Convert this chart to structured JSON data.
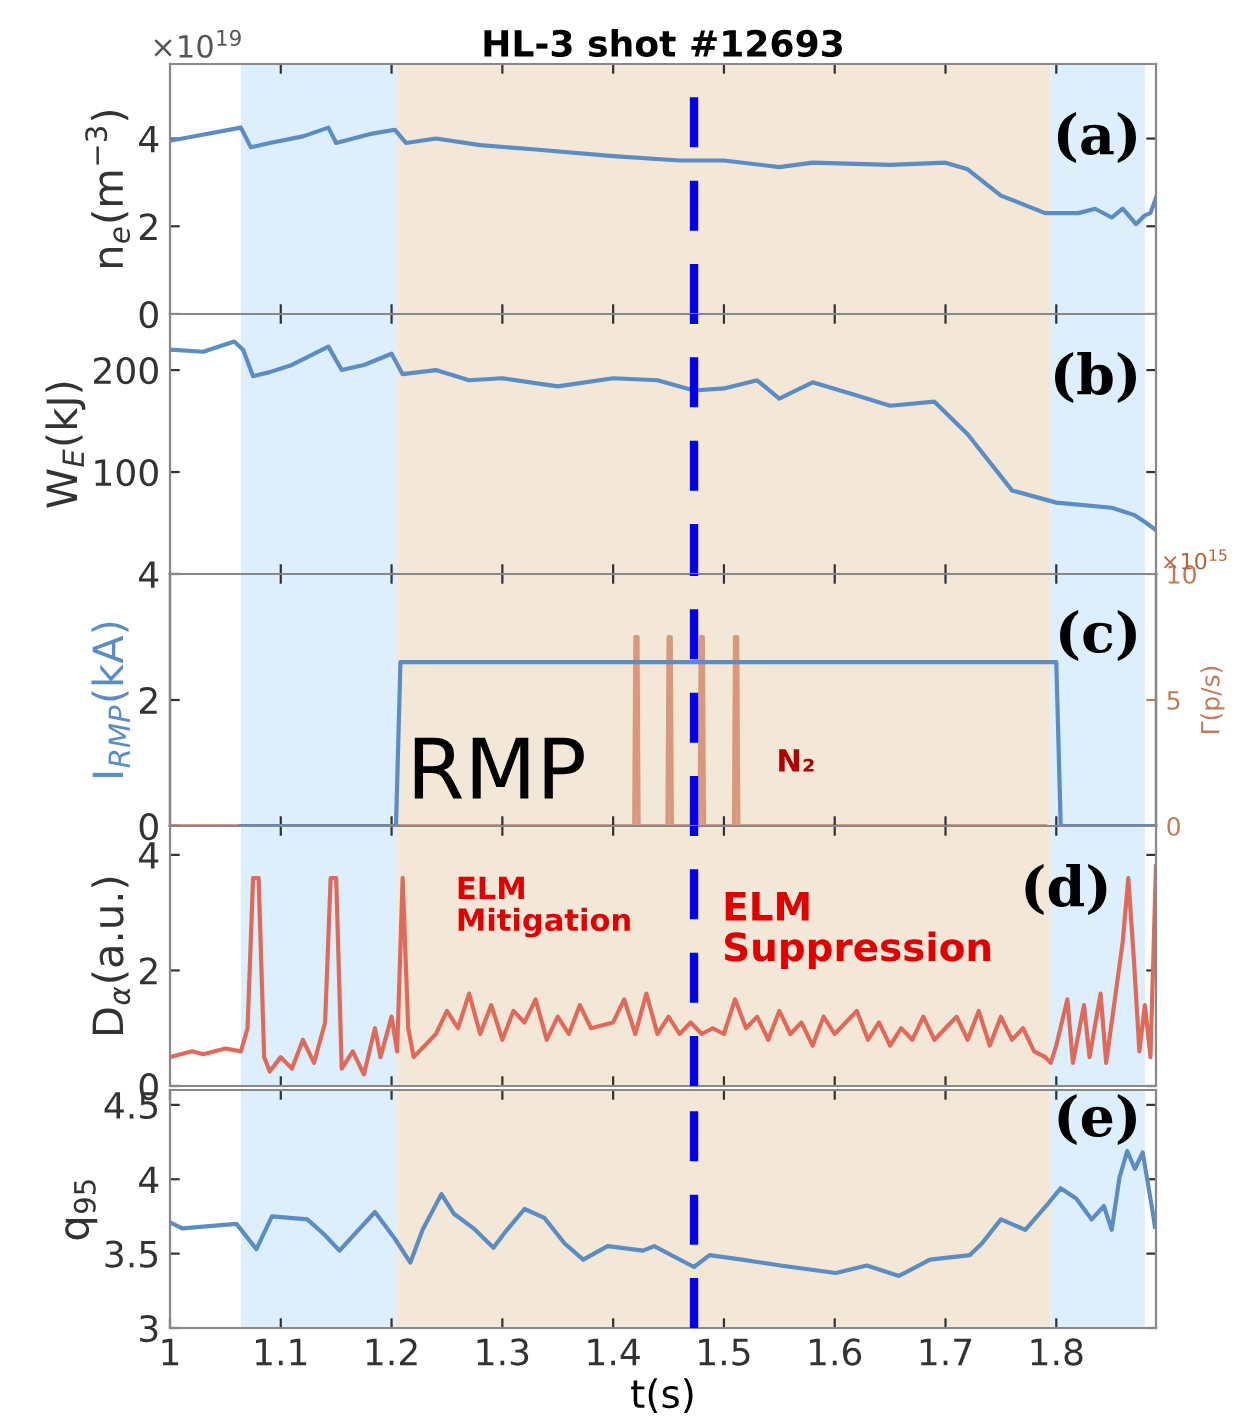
{
  "chart_data": [
    {
      "type": "line",
      "title": "HL-3 shot #12693",
      "ylabel": "n$_{e}$(m$^{−3}$)",
      "annotations": [
        "×10$^{19}$",
        "(a)"
      ],
      "tick_labels": "y",
      "xlim": [
        1,
        1.89
      ],
      "ylim": [
        0,
        5.7
      ],
      "yticks": [
        0,
        2,
        4
      ],
      "bands": [
        {
          "axis": "x",
          "from": 1.064,
          "to": 1.205,
          "color": "#ddeefc"
        },
        {
          "axis": "x",
          "from": 1.205,
          "to": 1.795,
          "color": "#f3e7d8"
        },
        {
          "axis": "x",
          "from": 1.795,
          "to": 1.88,
          "color": "#ddeefc"
        }
      ],
      "ref_lines": [
        {
          "axis": "x",
          "value": 1.473,
          "color": "#0000ee",
          "line_style": "dashed"
        }
      ],
      "series": [
        {
          "color": "#5b8cc4",
          "x": [
            1.0,
            1.064,
            1.073,
            1.09,
            1.12,
            1.143,
            1.15,
            1.18,
            1.203,
            1.213,
            1.24,
            1.28,
            1.33,
            1.4,
            1.46,
            1.5,
            1.55,
            1.58,
            1.65,
            1.7,
            1.72,
            1.75,
            1.79,
            1.82,
            1.835,
            1.85,
            1.86,
            1.872,
            1.88,
            1.885,
            1.89
          ],
          "values": [
            3.95,
            4.25,
            3.8,
            3.9,
            4.05,
            4.25,
            3.9,
            4.1,
            4.2,
            3.9,
            4.0,
            3.85,
            3.75,
            3.6,
            3.5,
            3.5,
            3.35,
            3.45,
            3.4,
            3.45,
            3.3,
            2.7,
            2.3,
            2.3,
            2.4,
            2.2,
            2.4,
            2.05,
            2.25,
            2.3,
            2.65
          ]
        }
      ]
    },
    {
      "type": "line",
      "ylabel": "W$_{E}$(kJ)",
      "annotations": [
        "(b)"
      ],
      "tick_labels": "y",
      "xlim": [
        1,
        1.89
      ],
      "ylim": [
        0,
        255
      ],
      "yticks": [
        100,
        200
      ],
      "bands": [
        {
          "axis": "x",
          "from": 1.064,
          "to": 1.205,
          "color": "#ddeefc"
        },
        {
          "axis": "x",
          "from": 1.205,
          "to": 1.795,
          "color": "#f3e7d8"
        },
        {
          "axis": "x",
          "from": 1.795,
          "to": 1.88,
          "color": "#ddeefc"
        }
      ],
      "ref_lines": [
        {
          "axis": "x",
          "value": 1.473,
          "color": "#0000ee",
          "line_style": "dashed"
        }
      ],
      "series": [
        {
          "color": "#5b8cc4",
          "x": [
            1.0,
            1.03,
            1.058,
            1.066,
            1.075,
            1.09,
            1.11,
            1.143,
            1.155,
            1.175,
            1.2,
            1.21,
            1.24,
            1.27,
            1.3,
            1.35,
            1.4,
            1.44,
            1.473,
            1.5,
            1.53,
            1.55,
            1.58,
            1.62,
            1.65,
            1.69,
            1.72,
            1.76,
            1.8,
            1.85,
            1.87,
            1.88,
            1.89
          ],
          "values": [
            220,
            218,
            228,
            220,
            194,
            198,
            205,
            223,
            200,
            205,
            216,
            196,
            200,
            190,
            192,
            184,
            192,
            190,
            180,
            182,
            190,
            172,
            188,
            175,
            165,
            169,
            137,
            82,
            70,
            65,
            58,
            51,
            43
          ]
        }
      ]
    },
    {
      "type": "line",
      "ylabel": "I$_{RMP}$(kA)",
      "y2label": "Γ(p/s)",
      "annotations": [
        "×10$^{15}$",
        "(c)",
        "RMP",
        "N₂"
      ],
      "tick_labels": "y",
      "xlim": [
        1,
        1.89
      ],
      "ylim": [
        0,
        4
      ],
      "yticks": [
        0,
        2,
        4
      ],
      "y2lim": [
        0,
        10
      ],
      "y2ticks": [
        0,
        5,
        10
      ],
      "bands": [
        {
          "axis": "x",
          "from": 1.064,
          "to": 1.205,
          "color": "#ddeefc"
        },
        {
          "axis": "x",
          "from": 1.205,
          "to": 1.795,
          "color": "#f3e7d8"
        },
        {
          "axis": "x",
          "from": 1.795,
          "to": 1.88,
          "color": "#ddeefc"
        }
      ],
      "ref_lines": [
        {
          "axis": "x",
          "value": 1.473,
          "color": "#0000ee",
          "line_style": "dashed"
        }
      ],
      "series": [
        {
          "color": "#d9987a",
          "axis": "y2",
          "x": [
            1.0,
            1.419,
            1.42,
            1.422,
            1.423,
            1.449,
            1.45,
            1.452,
            1.453,
            1.478,
            1.479,
            1.481,
            1.482,
            1.509,
            1.51,
            1.512,
            1.513,
            1.79
          ],
          "values": [
            0,
            0,
            7.5,
            7.5,
            0,
            0,
            7.5,
            7.5,
            0,
            0,
            7.5,
            7.5,
            0,
            0,
            7.5,
            7.5,
            0,
            0
          ]
        },
        {
          "color": "#5b8cc4",
          "x": [
            1.064,
            1.204,
            1.208,
            1.8,
            1.804,
            1.89
          ],
          "values": [
            0,
            0,
            2.6,
            2.6,
            0,
            0
          ]
        }
      ]
    },
    {
      "type": "line",
      "ylabel": "D$_{α}$(a.u.)",
      "annotations": [
        "(d)",
        "ELM\nMitigation",
        "ELM\nSuppression"
      ],
      "tick_labels": "y",
      "xlim": [
        1,
        1.89
      ],
      "ylim": [
        0,
        4.5
      ],
      "yticks": [
        0,
        2,
        4
      ],
      "bands": [
        {
          "axis": "x",
          "from": 1.064,
          "to": 1.205,
          "color": "#ddeefc"
        },
        {
          "axis": "x",
          "from": 1.205,
          "to": 1.795,
          "color": "#f3e7d8"
        },
        {
          "axis": "x",
          "from": 1.795,
          "to": 1.88,
          "color": "#ddeefc"
        }
      ],
      "ref_lines": [
        {
          "axis": "x",
          "value": 1.473,
          "color": "#0000ee",
          "line_style": "dashed"
        }
      ],
      "series": [
        {
          "color": "#e06a5a",
          "x": [
            1.0,
            1.02,
            1.03,
            1.05,
            1.064,
            1.07,
            1.075,
            1.08,
            1.085,
            1.09,
            1.1,
            1.11,
            1.12,
            1.13,
            1.14,
            1.145,
            1.15,
            1.155,
            1.165,
            1.175,
            1.185,
            1.19,
            1.2,
            1.205,
            1.21,
            1.215,
            1.22,
            1.24,
            1.25,
            1.26,
            1.27,
            1.28,
            1.29,
            1.3,
            1.31,
            1.32,
            1.33,
            1.34,
            1.35,
            1.36,
            1.37,
            1.38,
            1.4,
            1.41,
            1.42,
            1.43,
            1.44,
            1.45,
            1.46,
            1.47,
            1.48,
            1.49,
            1.5,
            1.51,
            1.52,
            1.53,
            1.54,
            1.55,
            1.56,
            1.57,
            1.58,
            1.59,
            1.6,
            1.62,
            1.63,
            1.64,
            1.65,
            1.66,
            1.67,
            1.68,
            1.69,
            1.7,
            1.71,
            1.72,
            1.73,
            1.74,
            1.75,
            1.76,
            1.77,
            1.78,
            1.79,
            1.795,
            1.8,
            1.81,
            1.815,
            1.825,
            1.83,
            1.84,
            1.845,
            1.855,
            1.86,
            1.865,
            1.87,
            1.875,
            1.88,
            1.885,
            1.89
          ],
          "values": [
            0.5,
            0.6,
            0.55,
            0.65,
            0.6,
            1.0,
            3.6,
            3.6,
            0.5,
            0.25,
            0.5,
            0.3,
            0.8,
            0.4,
            1.1,
            3.6,
            3.6,
            0.3,
            0.6,
            0.2,
            1.0,
            0.5,
            1.2,
            0.6,
            3.6,
            1.0,
            0.5,
            0.9,
            1.3,
            1.0,
            1.6,
            0.9,
            1.4,
            0.8,
            1.3,
            1.1,
            1.5,
            0.8,
            1.2,
            0.9,
            1.4,
            1.0,
            1.1,
            1.5,
            0.9,
            1.6,
            0.9,
            1.2,
            0.9,
            1.1,
            0.9,
            1.0,
            0.9,
            1.5,
            1.0,
            1.2,
            0.8,
            1.3,
            0.9,
            1.1,
            0.7,
            1.2,
            0.9,
            1.3,
            0.8,
            1.1,
            0.7,
            1.0,
            0.8,
            1.2,
            0.8,
            1.0,
            1.2,
            0.8,
            1.3,
            0.7,
            1.2,
            0.8,
            1.0,
            0.6,
            0.5,
            0.4,
            0.7,
            1.5,
            0.4,
            1.4,
            0.5,
            1.6,
            0.4,
            1.8,
            2.5,
            3.6,
            2.2,
            0.6,
            1.4,
            0.5,
            3.8
          ]
        }
      ]
    },
    {
      "type": "line",
      "ylabel": "q$_{95}$",
      "xlabel": "t(s)",
      "annotations": [
        "(e)"
      ],
      "xlim": [
        1,
        1.89
      ],
      "ylim": [
        3,
        4.6
      ],
      "yticks": [
        3,
        3.5,
        4,
        4.5
      ],
      "xticks": [
        1,
        1.1,
        1.2,
        1.3,
        1.4,
        1.5,
        1.6,
        1.7,
        1.8
      ],
      "bands": [
        {
          "axis": "x",
          "from": 1.064,
          "to": 1.205,
          "color": "#ddeefc"
        },
        {
          "axis": "x",
          "from": 1.205,
          "to": 1.795,
          "color": "#f3e7d8"
        },
        {
          "axis": "x",
          "from": 1.795,
          "to": 1.88,
          "color": "#ddeefc"
        }
      ],
      "ref_lines": [
        {
          "axis": "x",
          "value": 1.473,
          "color": "#0000ee",
          "line_style": "dashed"
        }
      ],
      "series": [
        {
          "color": "#5b8cc4",
          "x": [
            1.0,
            1.011,
            1.06,
            1.078,
            1.092,
            1.124,
            1.139,
            1.153,
            1.185,
            1.203,
            1.217,
            1.228,
            1.245,
            1.256,
            1.274,
            1.292,
            1.302,
            1.32,
            1.338,
            1.356,
            1.373,
            1.395,
            1.427,
            1.437,
            1.473,
            1.487,
            1.516,
            1.551,
            1.601,
            1.629,
            1.658,
            1.686,
            1.722,
            1.733,
            1.75,
            1.772,
            1.793,
            1.804,
            1.818,
            1.832,
            1.843,
            1.85,
            1.857,
            1.864,
            1.871,
            1.878,
            1.887,
            1.889
          ],
          "values": [
            3.71,
            3.67,
            3.7,
            3.53,
            3.75,
            3.73,
            3.63,
            3.52,
            3.78,
            3.6,
            3.44,
            3.66,
            3.9,
            3.77,
            3.67,
            3.54,
            3.64,
            3.8,
            3.74,
            3.57,
            3.46,
            3.55,
            3.52,
            3.55,
            3.41,
            3.49,
            3.46,
            3.42,
            3.37,
            3.42,
            3.35,
            3.46,
            3.49,
            3.57,
            3.73,
            3.66,
            3.84,
            3.94,
            3.87,
            3.73,
            3.82,
            3.66,
            4.01,
            4.19,
            4.07,
            4.18,
            3.78,
            3.68
          ]
        }
      ]
    }
  ]
}
